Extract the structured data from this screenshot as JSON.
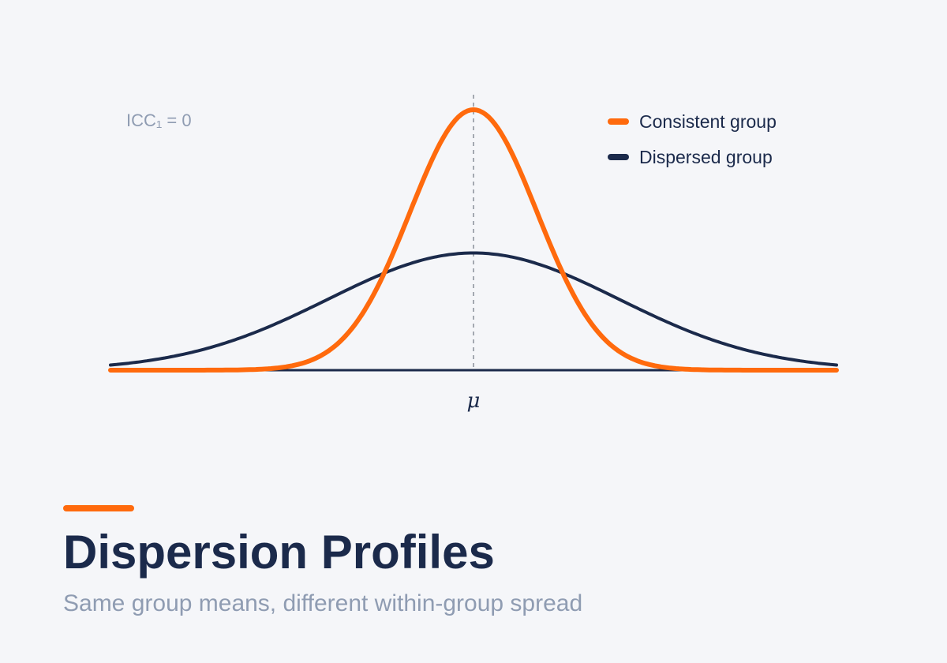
{
  "chart_data": {
    "type": "line",
    "annotation": "ICC₁ = 0",
    "mean_label": "μ",
    "xlim": [
      -4,
      4
    ],
    "mean_x": 0,
    "series": [
      {
        "name": "Consistent group",
        "sd": 0.7,
        "peak_relative": 1.0,
        "color": "#ff6a0d"
      },
      {
        "name": "Dispersed group",
        "sd": 1.6,
        "peak_relative": 0.45,
        "color": "#1b2a4b"
      }
    ],
    "baseline_color": "#1b2a4b",
    "mean_line_color": "#8a8f99",
    "legend_position": "top-right"
  },
  "header": {
    "title": "Dispersion Profiles",
    "subtitle": "Same group means, different within-group spread"
  },
  "colors": {
    "background": "#f5f6f9",
    "accent": "#ff6a0d",
    "title": "#1b2a4b",
    "subtitle": "#8f9cb2"
  }
}
